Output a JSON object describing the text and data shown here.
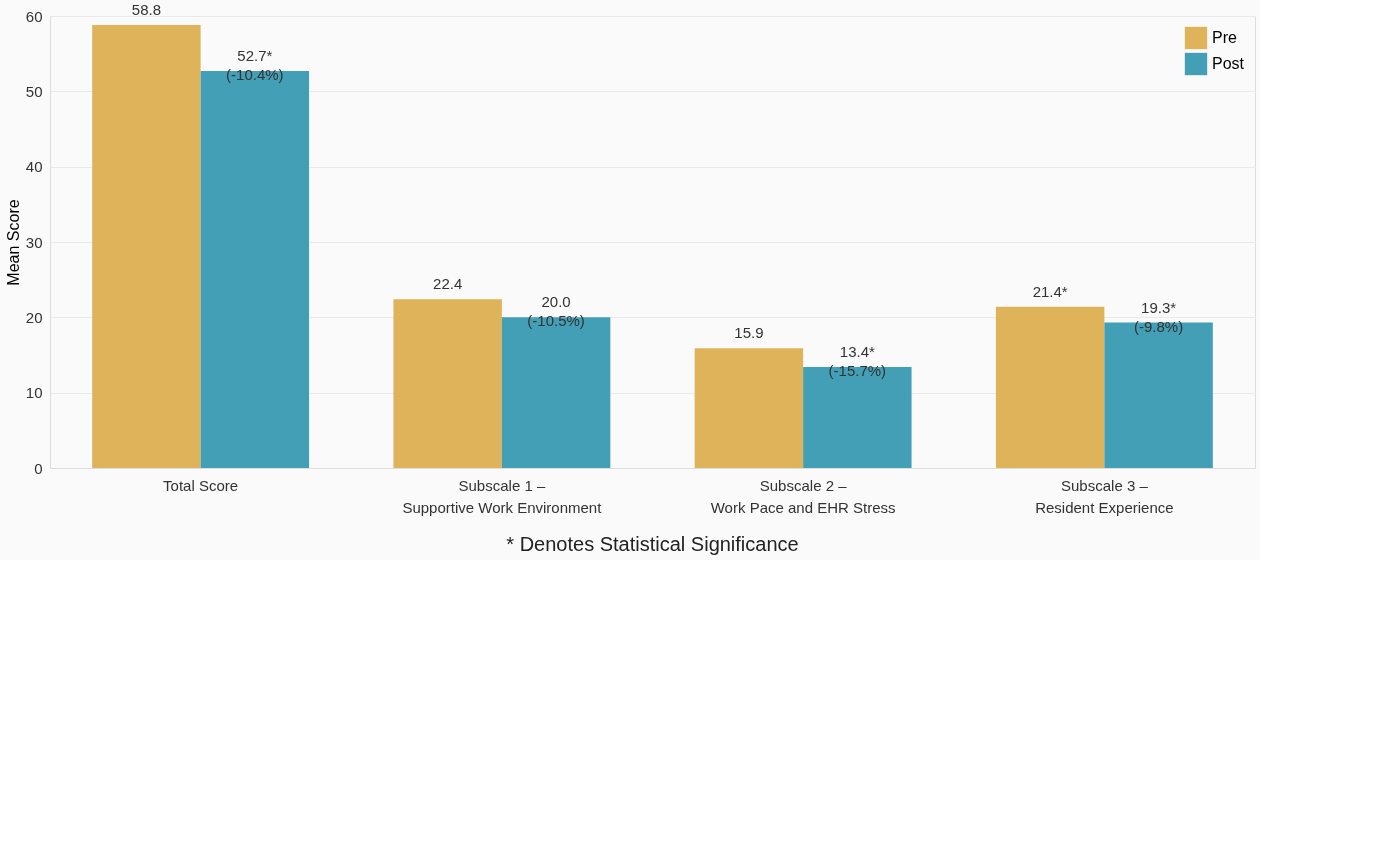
{
  "chart_data": {
    "type": "bar",
    "ylabel": "Mean Score",
    "categories": [
      "Total Score",
      "Subscale 1 –\nSupportive Work Environment",
      "Subscale 2 –\nWork Pace and EHR Stress",
      "Subscale 3 –\nResident Experience"
    ],
    "series": [
      {
        "name": "Pre",
        "color": "#dfb35a",
        "values": [
          58.8,
          22.4,
          15.9,
          21.4
        ],
        "value_labels": [
          "58.8",
          "22.4",
          "15.9",
          "21.4*"
        ]
      },
      {
        "name": "Post",
        "color": "#439fb6",
        "values": [
          52.7,
          20.0,
          13.4,
          19.3
        ],
        "value_labels": [
          "52.7*\n(-10.4%)",
          "20.0\n(-10.5%)",
          "13.4*\n(-15.7%)",
          "19.3*\n(-9.8%)"
        ]
      }
    ],
    "ylim": [
      0,
      60
    ],
    "yticks": [
      0,
      10,
      20,
      30,
      40,
      50,
      60
    ],
    "grid": "y",
    "legend": "top right",
    "annotations": [
      "* Denotes Statistical Significance"
    ]
  }
}
